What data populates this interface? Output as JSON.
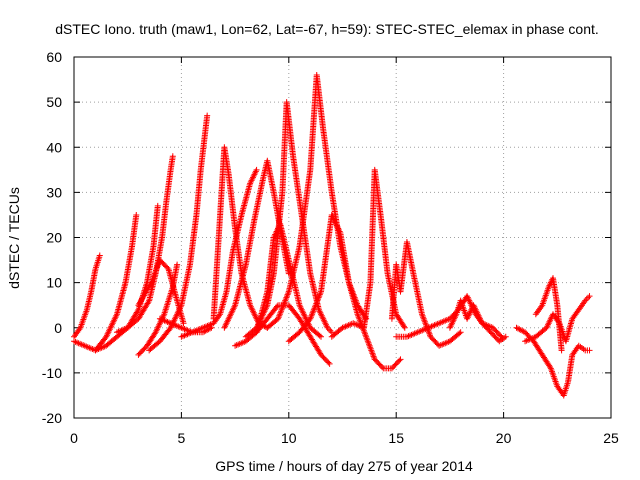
{
  "chart_data": {
    "type": "scatter",
    "title": "dSTEC Iono. truth (maw1, Lon=62, Lat=-67, h=59): STEC-STEC_elemax in phase cont.",
    "xlabel": "GPS time / hours of day 275 of year 2014",
    "ylabel": "dSTEC  / TECUs",
    "xlim": [
      0,
      25
    ],
    "ylim": [
      -20,
      60
    ],
    "xticks": [
      "0",
      "5",
      "10",
      "15",
      "20",
      "25"
    ],
    "yticks": [
      "-20",
      "-10",
      "0",
      "10",
      "20",
      "30",
      "40",
      "50",
      "60"
    ],
    "grid": true,
    "marker": "+",
    "color": "#ff0000",
    "series": [
      {
        "x": [
          0.0,
          0.3,
          0.6,
          0.8,
          1.0,
          1.2
        ],
        "y": [
          -2,
          0,
          4,
          8,
          13,
          16
        ]
      },
      {
        "x": [
          0.0,
          0.5,
          1.0,
          1.5,
          2.0,
          2.4,
          2.7,
          2.9
        ],
        "y": [
          -3,
          -4,
          -5,
          -2,
          3,
          10,
          18,
          25
        ]
      },
      {
        "x": [
          1.0,
          1.5,
          2.0,
          2.5,
          3.0,
          3.4,
          3.7,
          3.9
        ],
        "y": [
          -5,
          -4,
          -2,
          0,
          4,
          10,
          18,
          27
        ]
      },
      {
        "x": [
          2.0,
          2.5,
          3.0,
          3.5,
          3.8,
          4.1,
          4.3,
          4.5,
          4.6
        ],
        "y": [
          -1,
          0,
          2,
          6,
          12,
          20,
          28,
          35,
          38
        ]
      },
      {
        "x": [
          3.0,
          3.4,
          3.8,
          4.2,
          4.6,
          4.8
        ],
        "y": [
          -6,
          -4,
          -1,
          3,
          9,
          14
        ]
      },
      {
        "x": [
          3.0,
          3.6,
          4.0,
          4.4,
          4.8,
          5.1
        ],
        "y": [
          5,
          10,
          15,
          13,
          6,
          1
        ]
      },
      {
        "x": [
          3.5,
          4.0,
          4.5,
          5.0,
          5.4,
          5.7,
          5.9,
          6.1,
          6.2
        ],
        "y": [
          -5,
          -3,
          0,
          5,
          14,
          25,
          35,
          43,
          47
        ]
      },
      {
        "x": [
          4.0,
          4.5,
          5.0,
          5.5,
          6.0,
          6.4
        ],
        "y": [
          2,
          1,
          0,
          -1,
          -1,
          0
        ]
      },
      {
        "x": [
          5.0,
          5.5,
          6.0,
          6.5,
          6.8,
          7.1,
          7.4,
          7.8,
          8.2,
          8.5
        ],
        "y": [
          -2,
          -1,
          0,
          1,
          3,
          8,
          17,
          25,
          32,
          35
        ]
      },
      {
        "x": [
          6.5,
          7.0,
          7.2,
          7.5,
          7.8,
          8.2,
          8.6,
          9.0
        ],
        "y": [
          2,
          40,
          34,
          22,
          12,
          5,
          1,
          0
        ]
      },
      {
        "x": [
          7.0,
          7.5,
          8.0,
          8.4,
          8.8,
          9.0,
          9.3,
          9.6,
          10.0
        ],
        "y": [
          0,
          5,
          14,
          24,
          33,
          37,
          30,
          22,
          12
        ]
      },
      {
        "x": [
          7.5,
          8.0,
          8.5,
          9.0,
          9.5,
          10.0,
          10.5,
          11.0,
          11.5,
          11.9
        ],
        "y": [
          -4,
          -3,
          -1,
          2,
          5,
          5,
          2,
          -2,
          -6,
          -8
        ]
      },
      {
        "x": [
          8.0,
          8.5,
          9.0,
          9.3,
          9.7,
          9.9,
          10.2,
          10.6,
          11.0,
          11.4,
          11.8,
          12.0
        ],
        "y": [
          -2,
          0,
          5,
          12,
          30,
          50,
          38,
          25,
          12,
          4,
          0,
          -1
        ]
      },
      {
        "x": [
          8.5,
          9.0,
          9.3,
          9.6,
          10.0,
          10.5,
          11.0,
          11.5
        ],
        "y": [
          -1,
          8,
          20,
          23,
          15,
          5,
          0,
          -2
        ]
      },
      {
        "x": [
          9.0,
          9.5,
          10.0,
          10.5,
          11.0,
          11.3,
          11.6,
          12.0,
          12.4,
          12.8,
          13.2,
          13.6
        ],
        "y": [
          0,
          2,
          8,
          18,
          35,
          56,
          44,
          30,
          18,
          10,
          5,
          2
        ]
      },
      {
        "x": [
          10.0,
          10.5,
          11.0,
          11.5,
          12.0,
          12.4,
          12.8,
          13.2,
          13.6,
          14.0,
          14.4,
          14.8,
          15.2
        ],
        "y": [
          -3,
          -1,
          2,
          8,
          25,
          21,
          10,
          3,
          -2,
          -7,
          -9,
          -9,
          -7
        ]
      },
      {
        "x": [
          12.0,
          12.5,
          13.0,
          13.5,
          13.8,
          14.0,
          14.3,
          14.6,
          15.0,
          15.4
        ],
        "y": [
          -2,
          0,
          1,
          0,
          10,
          35,
          24,
          12,
          3,
          0
        ]
      },
      {
        "x": [
          14.8,
          15.0,
          15.2,
          15.5,
          15.8,
          16.2,
          16.6,
          17.0,
          17.5,
          18.0
        ],
        "y": [
          2,
          14,
          8,
          19,
          12,
          3,
          -2,
          -4,
          -3,
          -1
        ]
      },
      {
        "x": [
          15.0,
          15.5,
          16.0,
          16.5,
          17.0,
          17.5,
          17.9,
          18.3,
          18.7,
          19.0,
          19.5,
          19.9
        ],
        "y": [
          -2,
          -2,
          -1,
          0,
          1,
          2,
          4,
          7,
          3,
          1,
          0,
          -2
        ]
      },
      {
        "x": [
          17.5,
          17.8,
          18.0,
          18.3,
          18.6,
          19.0,
          19.4,
          19.8,
          20.1
        ],
        "y": [
          0,
          3,
          6,
          2,
          5,
          1,
          -1,
          -3,
          -2
        ]
      },
      {
        "x": [
          20.6,
          21.0,
          21.4,
          21.8,
          22.2,
          22.5,
          22.8,
          23.0,
          23.2,
          23.5,
          23.8,
          24.0
        ],
        "y": [
          0,
          -1,
          -3,
          -6,
          -9,
          -13,
          -15,
          -12,
          -6,
          -4,
          -5,
          -5
        ]
      },
      {
        "x": [
          21.0,
          21.5,
          22.0,
          22.3,
          22.6,
          22.9,
          23.2,
          23.5,
          23.8,
          24.0
        ],
        "y": [
          -3,
          -2,
          0,
          3,
          1,
          -3,
          2,
          4,
          6,
          7
        ]
      },
      {
        "x": [
          21.5,
          21.8,
          22.1,
          22.3,
          22.5,
          22.7
        ],
        "y": [
          3,
          5,
          9,
          11,
          5,
          -5
        ]
      }
    ]
  }
}
